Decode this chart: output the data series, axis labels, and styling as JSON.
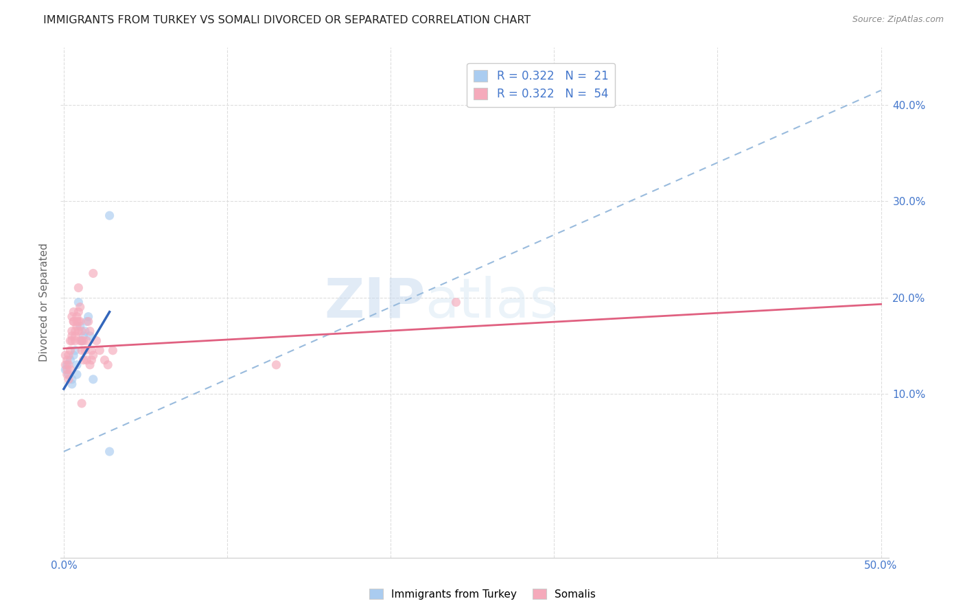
{
  "title": "IMMIGRANTS FROM TURKEY VS SOMALI DIVORCED OR SEPARATED CORRELATION CHART",
  "source": "Source: ZipAtlas.com",
  "ylabel": "Divorced or Separated",
  "watermark_zip": "ZIP",
  "watermark_atlas": "atlas",
  "legend_entries": [
    {
      "label": "R = 0.322   N =  21",
      "color": "#aaccf0"
    },
    {
      "label": "R = 0.322   N =  54",
      "color": "#f5aabb"
    }
  ],
  "x_ticks": [
    0.0,
    0.1,
    0.2,
    0.3,
    0.4,
    0.5
  ],
  "x_tick_labels": [
    "0.0%",
    "",
    "",
    "",
    "",
    "50.0%"
  ],
  "y_ticks_right": [
    0.1,
    0.2,
    0.3,
    0.4
  ],
  "y_tick_labels_right": [
    "10.0%",
    "20.0%",
    "30.0%",
    "40.0%"
  ],
  "xlim": [
    -0.002,
    0.505
  ],
  "ylim": [
    -0.07,
    0.46
  ],
  "blue_scatter": [
    [
      0.001,
      0.125
    ],
    [
      0.002,
      0.13
    ],
    [
      0.003,
      0.12
    ],
    [
      0.004,
      0.135
    ],
    [
      0.005,
      0.115
    ],
    [
      0.005,
      0.11
    ],
    [
      0.006,
      0.14
    ],
    [
      0.007,
      0.145
    ],
    [
      0.008,
      0.13
    ],
    [
      0.008,
      0.12
    ],
    [
      0.009,
      0.195
    ],
    [
      0.01,
      0.17
    ],
    [
      0.011,
      0.155
    ],
    [
      0.012,
      0.16
    ],
    [
      0.013,
      0.165
    ],
    [
      0.014,
      0.175
    ],
    [
      0.015,
      0.18
    ],
    [
      0.016,
      0.16
    ],
    [
      0.018,
      0.115
    ],
    [
      0.028,
      0.285
    ],
    [
      0.028,
      0.04
    ]
  ],
  "pink_scatter": [
    [
      0.001,
      0.13
    ],
    [
      0.001,
      0.14
    ],
    [
      0.002,
      0.125
    ],
    [
      0.002,
      0.12
    ],
    [
      0.002,
      0.135
    ],
    [
      0.003,
      0.13
    ],
    [
      0.003,
      0.115
    ],
    [
      0.003,
      0.14
    ],
    [
      0.004,
      0.125
    ],
    [
      0.004,
      0.155
    ],
    [
      0.004,
      0.145
    ],
    [
      0.005,
      0.155
    ],
    [
      0.005,
      0.16
    ],
    [
      0.005,
      0.165
    ],
    [
      0.006,
      0.175
    ],
    [
      0.006,
      0.185
    ],
    [
      0.006,
      0.175
    ],
    [
      0.007,
      0.165
    ],
    [
      0.007,
      0.155
    ],
    [
      0.007,
      0.16
    ],
    [
      0.008,
      0.175
    ],
    [
      0.008,
      0.17
    ],
    [
      0.008,
      0.18
    ],
    [
      0.009,
      0.185
    ],
    [
      0.009,
      0.175
    ],
    [
      0.009,
      0.165
    ],
    [
      0.01,
      0.155
    ],
    [
      0.01,
      0.19
    ],
    [
      0.01,
      0.175
    ],
    [
      0.011,
      0.165
    ],
    [
      0.011,
      0.155
    ],
    [
      0.011,
      0.145
    ],
    [
      0.012,
      0.135
    ],
    [
      0.012,
      0.155
    ],
    [
      0.013,
      0.145
    ],
    [
      0.014,
      0.135
    ],
    [
      0.014,
      0.155
    ],
    [
      0.015,
      0.175
    ],
    [
      0.016,
      0.13
    ],
    [
      0.016,
      0.165
    ],
    [
      0.017,
      0.135
    ],
    [
      0.017,
      0.145
    ],
    [
      0.018,
      0.225
    ],
    [
      0.018,
      0.14
    ],
    [
      0.02,
      0.155
    ],
    [
      0.022,
      0.145
    ],
    [
      0.025,
      0.135
    ],
    [
      0.027,
      0.13
    ],
    [
      0.03,
      0.145
    ],
    [
      0.005,
      0.18
    ],
    [
      0.009,
      0.21
    ],
    [
      0.011,
      0.09
    ],
    [
      0.13,
      0.13
    ],
    [
      0.24,
      0.195
    ]
  ],
  "blue_line_solid": {
    "x0": 0.0,
    "y0": 0.105,
    "x1": 0.028,
    "y1": 0.185
  },
  "blue_line_dashed": {
    "x0": 0.0,
    "y0": 0.04,
    "x1": 0.5,
    "y1": 0.415
  },
  "pink_line_solid": {
    "x0": 0.0,
    "y0": 0.147,
    "x1": 0.5,
    "y1": 0.193
  },
  "bottom_legend": [
    {
      "label": "Immigrants from Turkey",
      "color": "#aaccf0"
    },
    {
      "label": "Somalis",
      "color": "#f5aabb"
    }
  ],
  "background_color": "#ffffff",
  "scatter_alpha": 0.65,
  "scatter_size": 90,
  "grid_color": "#dddddd",
  "title_fontsize": 11.5,
  "tick_color_blue": "#4477cc",
  "ylabel_color": "#666666"
}
